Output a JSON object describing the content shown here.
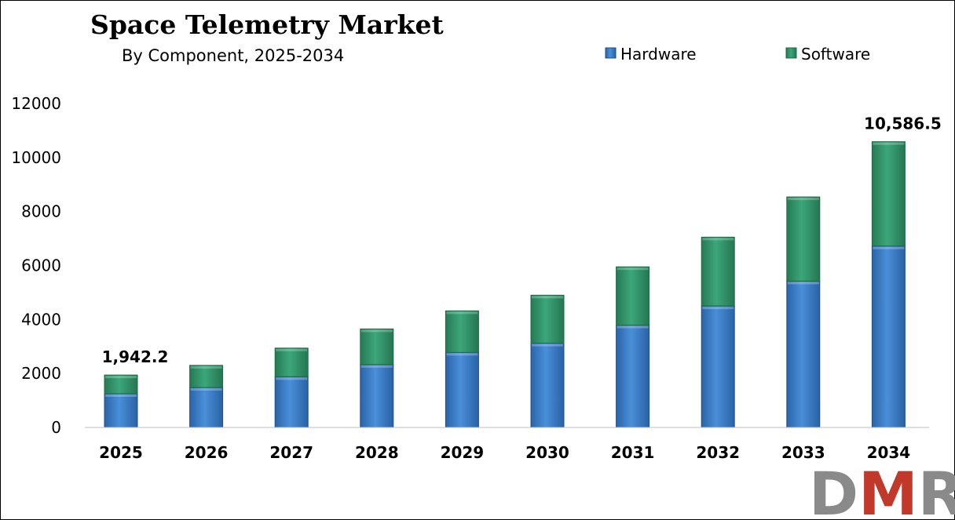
{
  "chart_data": {
    "type": "bar",
    "stacked": true,
    "title": "Space Telemetry Market",
    "subtitle": "By Component, 2025-2034",
    "categories": [
      "2025",
      "2026",
      "2027",
      "2028",
      "2029",
      "2030",
      "2031",
      "2032",
      "2033",
      "2034"
    ],
    "series": [
      {
        "name": "Hardware",
        "color": "#3579c6",
        "values": [
          1250,
          1480,
          1880,
          2330,
          2780,
          3120,
          3790,
          4500,
          5420,
          6720
        ]
      },
      {
        "name": "Software",
        "color": "#2f9168",
        "values": [
          692.2,
          820,
          1060,
          1320,
          1540,
          1780,
          2160,
          2550,
          3120,
          3866.5
        ]
      }
    ],
    "data_labels": [
      {
        "category": "2025",
        "text": "1,942.2"
      },
      {
        "category": "2034",
        "text": "10,586.5"
      }
    ],
    "ylim": [
      0,
      12000
    ],
    "yticks": [
      0,
      2000,
      4000,
      6000,
      8000,
      10000,
      12000
    ],
    "grid": false,
    "legend_position": "top-right"
  },
  "logo": {
    "text": "DMR",
    "colors": {
      "D": "#8a8a8a",
      "M": "#c0392b",
      "R": "#8a8a8a"
    }
  }
}
